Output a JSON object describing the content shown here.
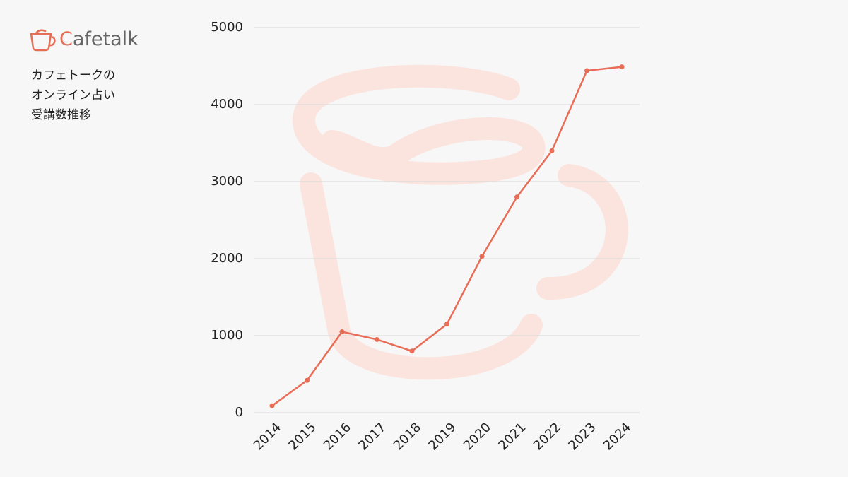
{
  "brand": "Cafetalk",
  "chart_data": {
    "type": "line",
    "title": [
      "カフェトークの",
      "オンライン占い",
      "受講数推移"
    ],
    "x": [
      2014,
      2015,
      2016,
      2017,
      2018,
      2019,
      2020,
      2021,
      2022,
      2023,
      2024
    ],
    "xlim": [
      2014,
      2024
    ],
    "series": [
      {
        "color": "#e86d57",
        "values": [
          90,
          420,
          1050,
          950,
          800,
          1150,
          2030,
          2800,
          3400,
          4440,
          4490
        ]
      }
    ],
    "ylim": [
      0,
      5000
    ],
    "yticks": [
      0,
      1000,
      2000,
      3000,
      4000,
      5000
    ],
    "grid": true
  }
}
